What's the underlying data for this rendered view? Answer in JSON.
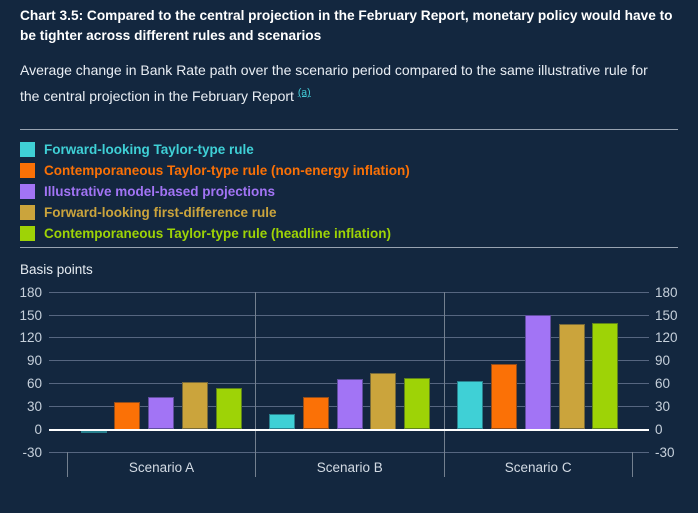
{
  "title": "Chart 3.5: Compared to the central projection in the February Report, monetary policy would have to be tighter across different rules and scenarios",
  "subtitle": {
    "text": "Average change in Bank Rate path over the scenario period compared to the same illustrative rule for the central projection in the February Report ",
    "footnote_marker": "(a)"
  },
  "colors": {
    "background": "#13273f",
    "title_text": "#ffffff",
    "subtitle_text": "#e9eef4",
    "footnote_accent": "#42ccd8",
    "grid_line": "#566680",
    "zero_line": "#ffffff",
    "axis_label": "#c6d0db",
    "rule_line": "#98a3b1"
  },
  "chart_data": {
    "type": "bar",
    "title": "",
    "xlabel": "",
    "ylabel": "Basis points",
    "ylim": [
      -30,
      180
    ],
    "yticks": [
      180,
      150,
      120,
      90,
      60,
      30,
      0,
      -30
    ],
    "grid": true,
    "legend_position": "top",
    "categories": [
      "Scenario A",
      "Scenario B",
      "Scenario C"
    ],
    "series": [
      {
        "name": "Forward-looking Taylor-type rule",
        "color": "#3fd0d6",
        "values": [
          -3,
          20,
          64
        ]
      },
      {
        "name": "Contemporaneous Taylor-type rule (non-energy inflation)",
        "color": "#fb7106",
        "values": [
          36,
          42,
          86
        ]
      },
      {
        "name": "Illustrative model-based projections",
        "color": "#a274f5",
        "values": [
          42,
          66,
          150
        ]
      },
      {
        "name": "Forward-looking first-difference rule",
        "color": "#cba43c",
        "values": [
          62,
          74,
          138
        ]
      },
      {
        "name": "Contemporaneous Taylor-type rule (headline inflation)",
        "color": "#9ed306",
        "values": [
          54,
          67,
          140
        ]
      }
    ]
  }
}
